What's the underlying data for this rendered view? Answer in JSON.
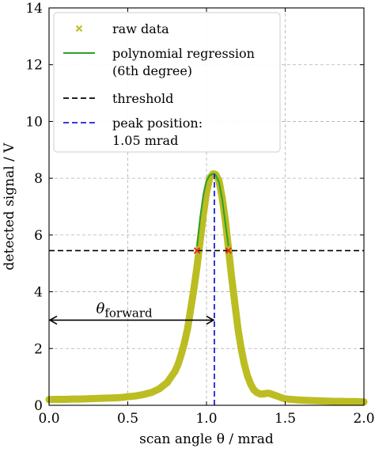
{
  "chart_data": {
    "type": "line",
    "xlabel": "scan angle θ / mrad",
    "ylabel": "detected signal / V",
    "xlim": [
      0.0,
      2.0
    ],
    "ylim": [
      0,
      14
    ],
    "xticks": [
      "0.0",
      "0.5",
      "1.0",
      "1.5",
      "2.0"
    ],
    "yticks": [
      "0",
      "2",
      "4",
      "6",
      "8",
      "10",
      "12",
      "14"
    ],
    "grid": true,
    "legend_position": "top-left",
    "colors": {
      "raw": "#bcbd22",
      "regression": "#2ca02c",
      "threshold": "#000000",
      "peak": "#1f1fd6",
      "crossing": "#e8281e",
      "annotation": "#000000"
    },
    "legend": [
      {
        "key": "raw",
        "label_lines": [
          "raw data"
        ]
      },
      {
        "key": "regression",
        "label_lines": [
          "polynomial regression",
          "(6th degree)"
        ]
      },
      {
        "key": "threshold",
        "label_lines": [
          "threshold"
        ]
      },
      {
        "key": "peak",
        "label_lines": [
          "peak position:",
          "1.05 mrad"
        ]
      }
    ],
    "raw_data": {
      "x": [
        0.0,
        0.05,
        0.1,
        0.15,
        0.2,
        0.25,
        0.3,
        0.35,
        0.4,
        0.45,
        0.5,
        0.55,
        0.6,
        0.65,
        0.7,
        0.75,
        0.8,
        0.82,
        0.84,
        0.86,
        0.88,
        0.9,
        0.92,
        0.94,
        0.96,
        0.98,
        1.0,
        1.02,
        1.04,
        1.05,
        1.06,
        1.08,
        1.1,
        1.12,
        1.14,
        1.16,
        1.18,
        1.2,
        1.22,
        1.24,
        1.26,
        1.28,
        1.3,
        1.32,
        1.34,
        1.36,
        1.38,
        1.4,
        1.42,
        1.44,
        1.46,
        1.48,
        1.5,
        1.55,
        1.6,
        1.65,
        1.7,
        1.75,
        1.8,
        1.85,
        1.9,
        1.95,
        2.0
      ],
      "y": [
        0.2,
        0.21,
        0.21,
        0.22,
        0.22,
        0.23,
        0.24,
        0.25,
        0.26,
        0.27,
        0.3,
        0.33,
        0.38,
        0.45,
        0.58,
        0.8,
        1.2,
        1.45,
        1.8,
        2.2,
        2.7,
        3.4,
        4.1,
        4.9,
        5.8,
        6.7,
        7.5,
        8.0,
        8.15,
        8.15,
        8.12,
        7.9,
        7.3,
        6.5,
        5.5,
        4.5,
        3.6,
        2.7,
        2.0,
        1.45,
        1.05,
        0.75,
        0.55,
        0.45,
        0.4,
        0.4,
        0.42,
        0.42,
        0.38,
        0.34,
        0.3,
        0.26,
        0.23,
        0.2,
        0.18,
        0.17,
        0.16,
        0.15,
        0.14,
        0.14,
        0.13,
        0.13,
        0.12
      ]
    },
    "regression": {
      "x": [
        0.94,
        0.96,
        0.98,
        1.0,
        1.02,
        1.04,
        1.05,
        1.06,
        1.08,
        1.1,
        1.12,
        1.14
      ],
      "y": [
        5.6,
        6.6,
        7.4,
        7.9,
        8.1,
        8.15,
        8.15,
        8.1,
        7.85,
        7.25,
        6.4,
        5.6
      ]
    },
    "threshold": 5.45,
    "peak_position": 1.05,
    "crossings": {
      "x": [
        0.94,
        1.14
      ],
      "y": [
        5.45,
        5.45
      ]
    },
    "annotation": {
      "label": "θ",
      "subscript": "forward",
      "x_from": 0.0,
      "x_to": 1.05,
      "y": 3.0
    }
  }
}
